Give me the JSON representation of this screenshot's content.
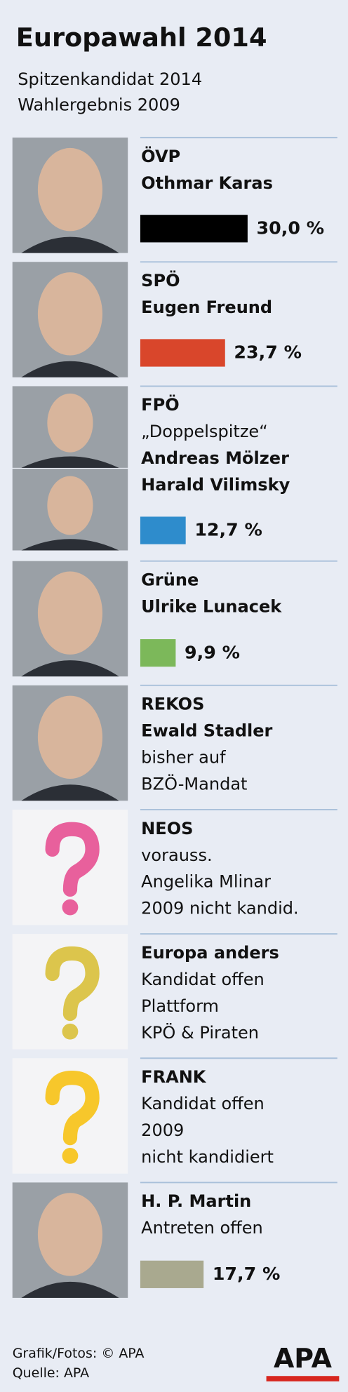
{
  "header": {
    "title": "Europawahl 2014",
    "subtitle_lines": [
      "Spitzenkandidat 2014",
      "Wahlergebnis 2009"
    ]
  },
  "parties": [
    {
      "lines": [
        {
          "text": "ÖVP",
          "bold": true
        },
        {
          "text": "Othmar Karas",
          "bold": true
        }
      ],
      "value": 30.0,
      "value_label": "30,0 %",
      "color": "#000000"
    },
    {
      "lines": [
        {
          "text": "SPÖ",
          "bold": true
        },
        {
          "text": "Eugen Freund",
          "bold": true
        }
      ],
      "value": 23.7,
      "value_label": "23,7 %",
      "color": "#d9462b"
    },
    {
      "lines": [
        {
          "text": "FPÖ",
          "bold": true
        },
        {
          "text": "„Doppelspitze“",
          "bold": false
        },
        {
          "text": "Andreas Mölzer",
          "bold": true
        },
        {
          "text": "Harald Vilimsky",
          "bold": true
        }
      ],
      "value": 12.7,
      "value_label": "12,7 %",
      "color": "#2e8ccc"
    },
    {
      "lines": [
        {
          "text": "Grüne",
          "bold": true
        },
        {
          "text": "Ulrike Lunacek",
          "bold": true
        }
      ],
      "value": 9.9,
      "value_label": "9,9 %",
      "color": "#7cb85a"
    },
    {
      "lines": [
        {
          "text": "REKOS",
          "bold": true
        },
        {
          "text": "Ewald Stadler",
          "bold": true
        },
        {
          "text": "bisher auf",
          "bold": false
        },
        {
          "text": "BZÖ-Mandat",
          "bold": false
        }
      ]
    },
    {
      "lines": [
        {
          "text": "NEOS",
          "bold": true
        },
        {
          "text": "vorauss.",
          "bold": false
        },
        {
          "text": "Angelika Mlinar",
          "bold": false
        },
        {
          "text": "2009 nicht kandid.",
          "bold": false
        }
      ],
      "color": "#e8609c"
    },
    {
      "lines": [
        {
          "text": "Europa anders",
          "bold": true
        },
        {
          "text": "Kandidat offen",
          "bold": false
        },
        {
          "text": "Plattform",
          "bold": false
        },
        {
          "text": "KPÖ & Piraten",
          "bold": false
        }
      ],
      "color": "#dcc54c"
    },
    {
      "lines": [
        {
          "text": "FRANK",
          "bold": true
        },
        {
          "text": "Kandidat offen",
          "bold": false
        },
        {
          "text": "2009",
          "bold": false
        },
        {
          "text": "nicht kandidiert",
          "bold": false
        }
      ],
      "color": "#f7c72b"
    },
    {
      "lines": [
        {
          "text": "H. P. Martin",
          "bold": true
        },
        {
          "text": "Antreten offen",
          "bold": false
        }
      ],
      "value": 17.7,
      "value_label": "17,7 %",
      "color": "#a9a98f"
    }
  ],
  "footer": {
    "lines": [
      "Grafik/Fotos: © APA",
      "Quelle: APA"
    ],
    "logo": "APA"
  }
}
